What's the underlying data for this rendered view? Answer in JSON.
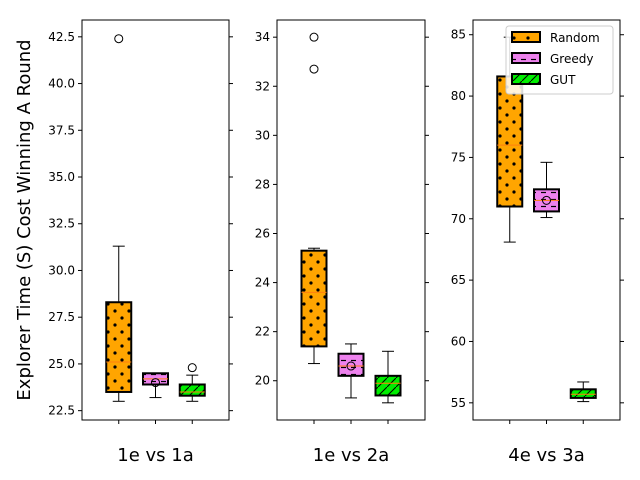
{
  "chart_data": {
    "type": "boxplot",
    "ylabel": "Explorer Time (S) Cost Winning A Round",
    "legend": {
      "placement": "top-right of third panel",
      "entries": [
        {
          "name": "Random",
          "color": "#ffa500",
          "hatch": "dots"
        },
        {
          "name": "Greedy",
          "color": "#ee82ee",
          "hatch": "dashes"
        },
        {
          "name": "GUT",
          "color": "#00ee00",
          "hatch": "diagonal"
        }
      ]
    },
    "panels": [
      {
        "category": "1e vs 1a",
        "ylim": [
          22.0,
          43.4
        ],
        "yticks": [
          "22.5",
          "25.0",
          "27.5",
          "30.0",
          "32.5",
          "35.0",
          "37.5",
          "40.0",
          "42.5"
        ],
        "boxes": [
          {
            "series": "Random",
            "whislo": 23.0,
            "q1": 23.5,
            "med": 25.1,
            "q3": 28.3,
            "whishi": 31.3,
            "fliers": [
              42.4
            ]
          },
          {
            "series": "Greedy",
            "whislo": 23.2,
            "q1": 23.9,
            "med": 24.2,
            "q3": 24.5,
            "whishi": 24.5,
            "fliers": [
              24.0
            ]
          },
          {
            "series": "GUT",
            "whislo": 23.0,
            "q1": 23.3,
            "med": 23.5,
            "q3": 23.9,
            "whishi": 24.4,
            "fliers": [
              24.8
            ]
          }
        ]
      },
      {
        "category": "1e vs 2a",
        "ylim": [
          18.4,
          34.7
        ],
        "yticks": [
          "20",
          "22",
          "24",
          "26",
          "28",
          "30",
          "32",
          "34"
        ],
        "boxes": [
          {
            "series": "Random",
            "whislo": 20.7,
            "q1": 21.4,
            "med": 23.6,
            "q3": 25.3,
            "whishi": 25.4,
            "fliers": [
              32.7,
              34.0
            ]
          },
          {
            "series": "Greedy",
            "whislo": 19.3,
            "q1": 20.2,
            "med": 20.6,
            "q3": 21.1,
            "whishi": 21.5,
            "fliers": [
              20.6
            ]
          },
          {
            "series": "GUT",
            "whislo": 19.1,
            "q1": 19.4,
            "med": 19.9,
            "q3": 20.2,
            "whishi": 21.2,
            "fliers": []
          }
        ]
      },
      {
        "category": "4e vs 3a",
        "ylim": [
          53.6,
          86.2
        ],
        "yticks": [
          "55",
          "60",
          "65",
          "70",
          "75",
          "80",
          "85"
        ],
        "boxes": [
          {
            "series": "Random",
            "whislo": 68.1,
            "q1": 71.0,
            "med": 76.0,
            "q3": 81.6,
            "whishi": 84.8,
            "fliers": []
          },
          {
            "series": "Greedy",
            "whislo": 70.1,
            "q1": 70.6,
            "med": 71.5,
            "q3": 72.4,
            "whishi": 74.6,
            "fliers": [
              71.5
            ]
          },
          {
            "series": "GUT",
            "whislo": 55.1,
            "q1": 55.4,
            "med": 55.7,
            "q3": 56.1,
            "whishi": 56.7,
            "fliers": []
          }
        ]
      }
    ]
  }
}
